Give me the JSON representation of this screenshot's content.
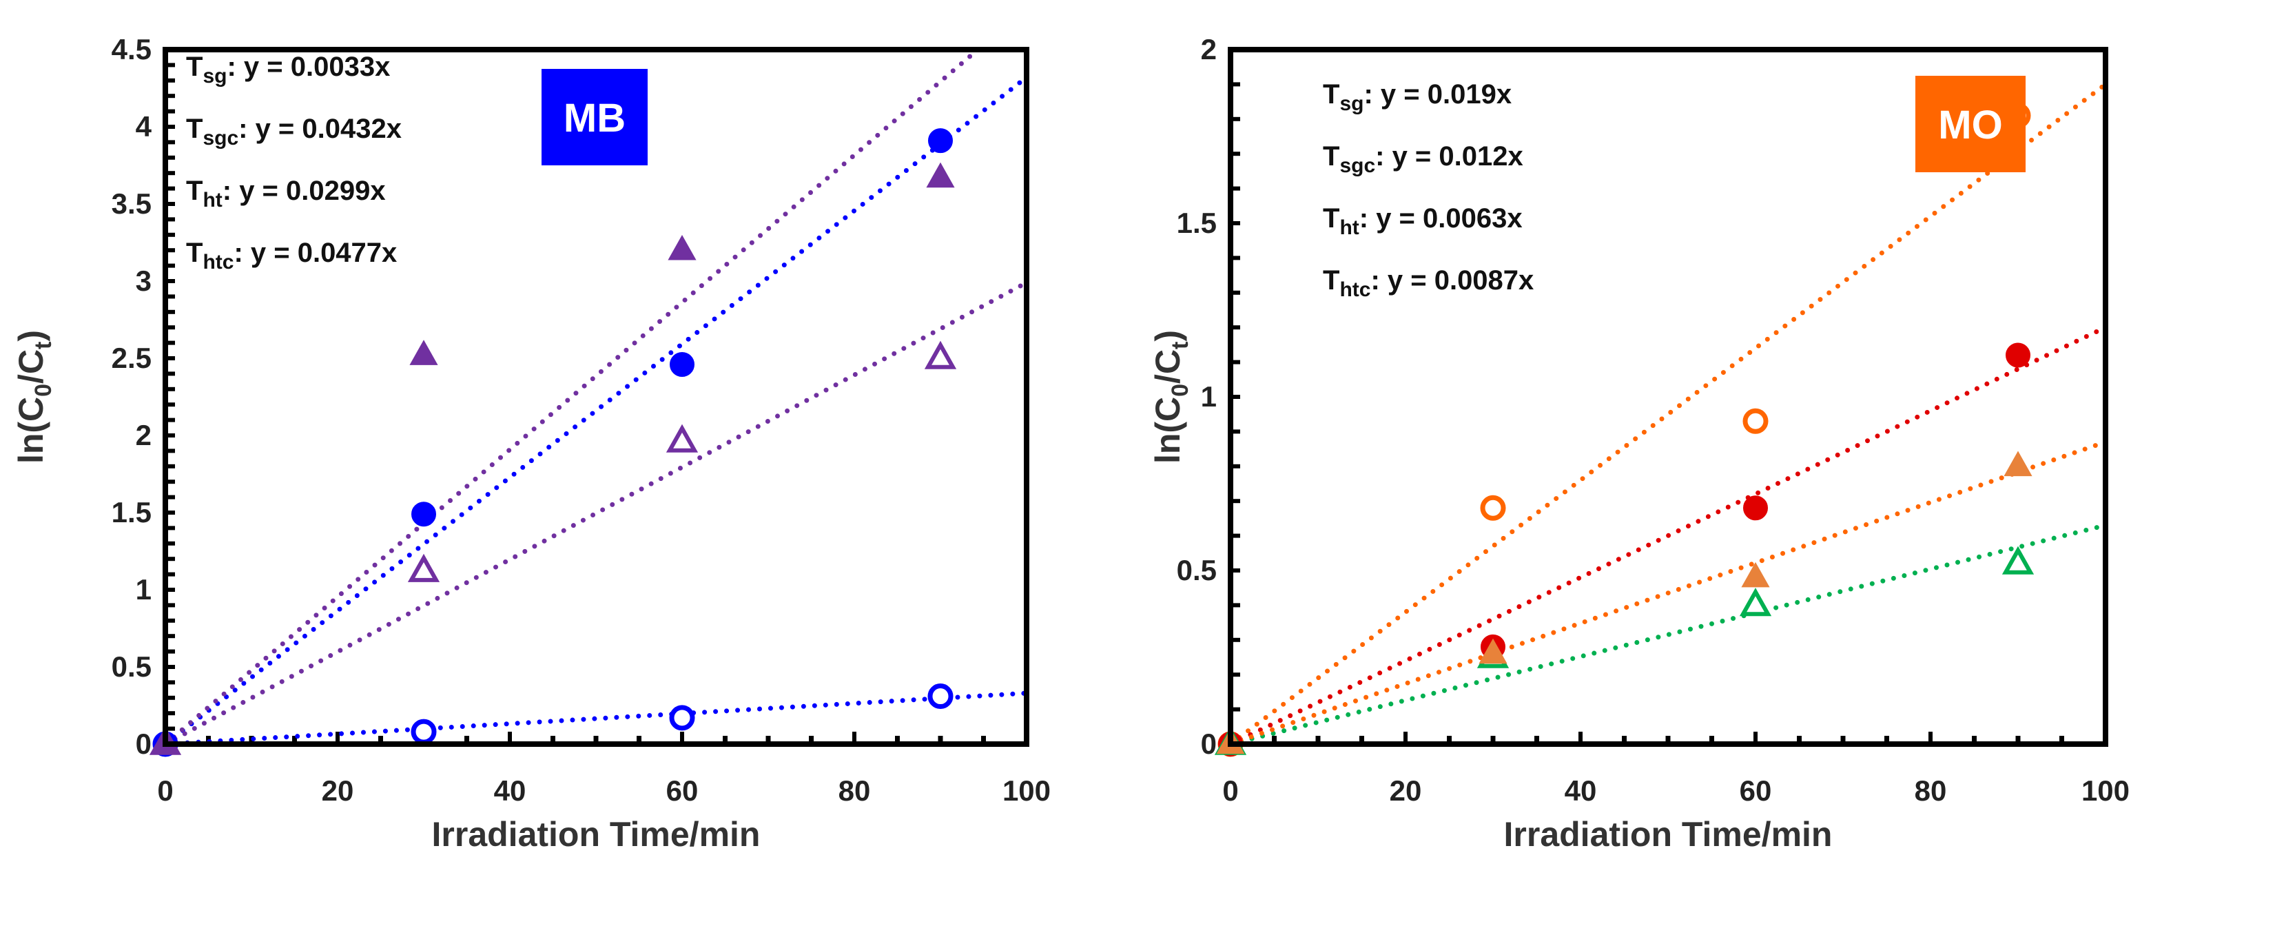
{
  "chart_data": [
    {
      "type": "scatter",
      "title": "MB",
      "title_color": "#0000ff",
      "xlabel": "Irradiation Time/min",
      "ylabel": {
        "prefix": "ln(C",
        "sub1": "0",
        "mid": "/C",
        "sub2": "t",
        "suffix": ")"
      },
      "xlim": [
        0,
        100
      ],
      "ylim": [
        0,
        4.5
      ],
      "xticks": [
        "0",
        "20",
        "40",
        "60",
        "80",
        "100"
      ],
      "yticks": [
        "0",
        "0.5",
        "1",
        "1.5",
        "2",
        "2.5",
        "3",
        "3.5",
        "4",
        "4.5"
      ],
      "grid": false,
      "annotations": [
        {
          "label": "T",
          "sub": "sg",
          "eq": ": y = 0.0033x"
        },
        {
          "label": "T",
          "sub": "sgc",
          "eq": ": y = 0.0432x"
        },
        {
          "label": "T",
          "sub": "ht",
          "eq": ": y = 0.0299x"
        },
        {
          "label": "T",
          "sub": "htc",
          "eq": ": y = 0.0477x"
        }
      ],
      "x": [
        0,
        30,
        60,
        90
      ],
      "series": [
        {
          "name": "Tsg",
          "marker": "circle-open",
          "color": "#0000ff",
          "line_color": "#0000ff",
          "slope": 0.0033,
          "values": [
            0,
            0.08,
            0.17,
            0.31
          ]
        },
        {
          "name": "Tsgc",
          "marker": "circle-filled",
          "color": "#0000ff",
          "line_color": "#0000ff",
          "slope": 0.0432,
          "values": [
            0,
            1.49,
            2.46,
            3.91
          ]
        },
        {
          "name": "Tht",
          "marker": "triangle-open",
          "color": "#7030a0",
          "line_color": "#7030a0",
          "slope": 0.0299,
          "values": [
            0,
            1.12,
            1.96,
            2.5
          ]
        },
        {
          "name": "Thtc",
          "marker": "triangle-filled",
          "color": "#7030a0",
          "line_color": "#7030a0",
          "slope": 0.0477,
          "values": [
            0,
            2.52,
            3.2,
            3.67
          ]
        }
      ]
    },
    {
      "type": "scatter",
      "title": "MO",
      "title_color": "#ff6600",
      "xlabel": "Irradiation Time/min",
      "ylabel": {
        "prefix": "ln(C",
        "sub1": "0",
        "mid": "/C",
        "sub2": "t",
        "suffix": ")"
      },
      "xlim": [
        0,
        100
      ],
      "ylim": [
        0,
        2
      ],
      "xticks": [
        "0",
        "20",
        "40",
        "60",
        "80",
        "100"
      ],
      "yticks": [
        "0",
        "0.5",
        "1",
        "1.5",
        "2"
      ],
      "grid": false,
      "annotations": [
        {
          "label": "T",
          "sub": "sg",
          "eq": ": y = 0.019x"
        },
        {
          "label": "T",
          "sub": "sgc",
          "eq": ": y = 0.012x"
        },
        {
          "label": "T",
          "sub": "ht",
          "eq": ": y = 0.0063x"
        },
        {
          "label": "T",
          "sub": "htc",
          "eq": ": y = 0.0087x"
        }
      ],
      "x": [
        0,
        30,
        60,
        90
      ],
      "series": [
        {
          "name": "Tsg",
          "marker": "circle-open",
          "color": "#ff6600",
          "line_color": "#ff6600",
          "slope": 0.019,
          "values": [
            0,
            0.68,
            0.93,
            1.81
          ]
        },
        {
          "name": "Tsgc",
          "marker": "circle-filled",
          "color": "#e00000",
          "line_color": "#e00000",
          "slope": 0.012,
          "values": [
            0,
            0.28,
            0.68,
            1.12
          ]
        },
        {
          "name": "Tht",
          "marker": "triangle-open",
          "color": "#00b050",
          "line_color": "#00b050",
          "slope": 0.0063,
          "values": [
            0,
            0.25,
            0.4,
            0.52
          ]
        },
        {
          "name": "Thtc",
          "marker": "triangle-filled",
          "color": "#e8823a",
          "line_color": "#ff6600",
          "slope": 0.0087,
          "values": [
            0,
            0.26,
            0.48,
            0.8
          ]
        }
      ]
    }
  ]
}
